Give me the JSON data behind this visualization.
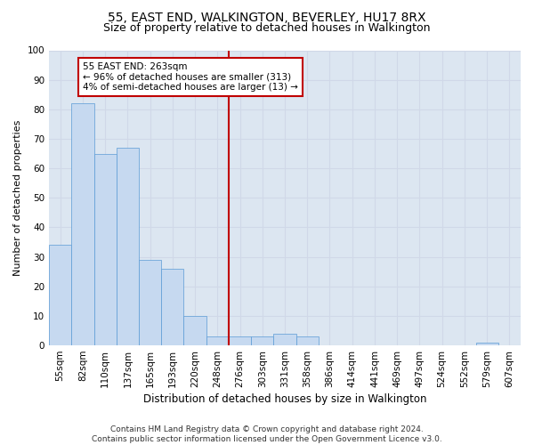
{
  "title": "55, EAST END, WALKINGTON, BEVERLEY, HU17 8RX",
  "subtitle": "Size of property relative to detached houses in Walkington",
  "xlabel": "Distribution of detached houses by size in Walkington",
  "ylabel": "Number of detached properties",
  "bar_labels": [
    "55sqm",
    "82sqm",
    "110sqm",
    "137sqm",
    "165sqm",
    "193sqm",
    "220sqm",
    "248sqm",
    "276sqm",
    "303sqm",
    "331sqm",
    "358sqm",
    "386sqm",
    "414sqm",
    "441sqm",
    "469sqm",
    "497sqm",
    "524sqm",
    "552sqm",
    "579sqm",
    "607sqm"
  ],
  "bar_values": [
    34,
    82,
    65,
    67,
    29,
    26,
    10,
    3,
    3,
    3,
    4,
    3,
    0,
    0,
    0,
    0,
    0,
    0,
    0,
    1,
    0
  ],
  "bar_color": "#c6d9f0",
  "bar_edge_color": "#5b9bd5",
  "vline_x": 7.5,
  "vline_color": "#c00000",
  "annotation_text": "55 EAST END: 263sqm\n← 96% of detached houses are smaller (313)\n4% of semi-detached houses are larger (13) →",
  "annotation_box_color": "#c00000",
  "ylim": [
    0,
    100
  ],
  "yticks": [
    0,
    10,
    20,
    30,
    40,
    50,
    60,
    70,
    80,
    90,
    100
  ],
  "grid_color": "#d0d8e8",
  "background_color": "#dce6f1",
  "footnote": "Contains HM Land Registry data © Crown copyright and database right 2024.\nContains public sector information licensed under the Open Government Licence v3.0.",
  "title_fontsize": 10,
  "subtitle_fontsize": 9,
  "xlabel_fontsize": 8.5,
  "ylabel_fontsize": 8,
  "annot_fontsize": 7.5,
  "tick_fontsize": 7.5,
  "footnote_fontsize": 6.5
}
